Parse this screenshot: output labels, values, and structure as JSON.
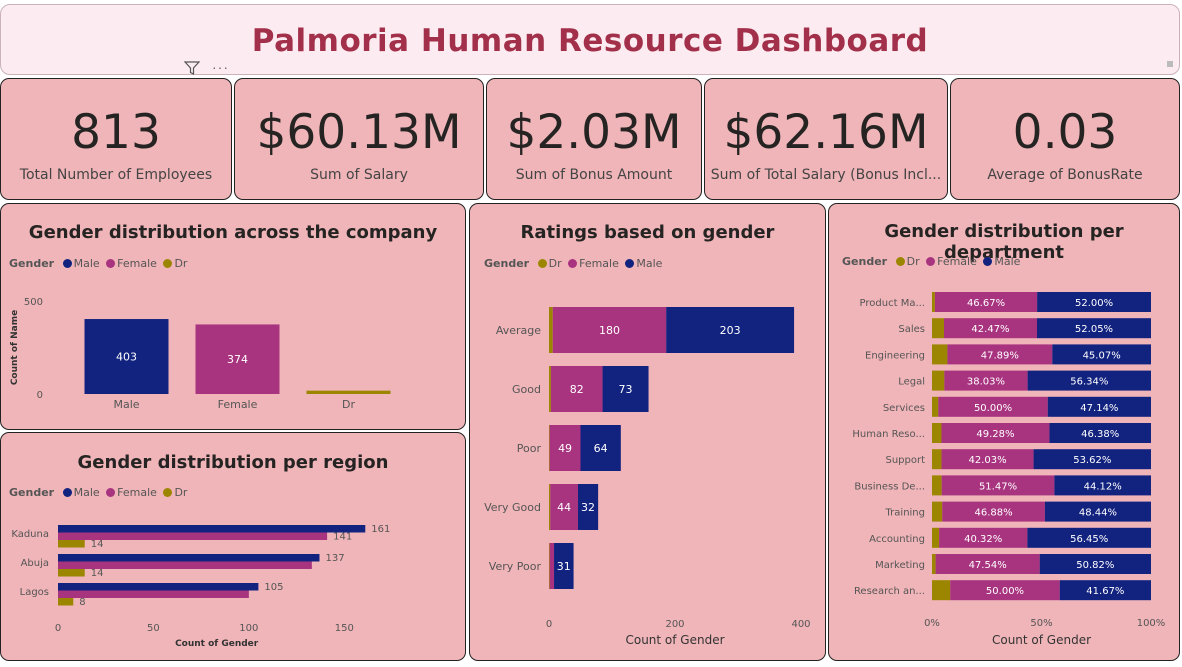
{
  "header": {
    "title": "Palmoria Human Resource Dashboard"
  },
  "kpis": [
    {
      "value": "813",
      "label": "Total Number of Employees"
    },
    {
      "value": "$60.13M",
      "label": "Sum of Salary"
    },
    {
      "value": "$2.03M",
      "label": "Sum of Bonus Amount"
    },
    {
      "value": "$62.16M",
      "label": "Sum of Total Salary (Bonus Incl..."
    },
    {
      "value": "0.03",
      "label": "Average of BonusRate"
    }
  ],
  "colors": {
    "male": "#12227f",
    "female": "#a8337f",
    "dr": "#9c8600"
  },
  "chart_data": [
    {
      "type": "bar",
      "title": "Gender distribution across the company",
      "legend_title": "Gender",
      "legend": [
        "Male",
        "Female",
        "Dr"
      ],
      "categories": [
        "Male",
        "Female",
        "Dr"
      ],
      "values": [
        403,
        374,
        18
      ],
      "data_labels": [
        "403",
        "374",
        ""
      ],
      "ylabel": "Count of Name",
      "y_ticks": [
        "500",
        "0"
      ],
      "ylim": [
        0,
        500
      ]
    },
    {
      "type": "bar",
      "orientation": "horizontal",
      "title": "Gender distribution per region",
      "legend_title": "Gender",
      "legend": [
        "Male",
        "Female",
        "Dr"
      ],
      "categories": [
        "Kaduna",
        "Abuja",
        "Lagos"
      ],
      "series": [
        {
          "name": "Male",
          "values": [
            161,
            137,
            105
          ],
          "labels": [
            "161",
            "137",
            "105"
          ]
        },
        {
          "name": "Female",
          "values": [
            141,
            133,
            100
          ],
          "labels": [
            "141",
            "",
            ""
          ]
        },
        {
          "name": "Dr",
          "values": [
            14,
            14,
            8
          ],
          "labels": [
            "14",
            "14",
            "8"
          ]
        }
      ],
      "xlabel": "Count of Gender",
      "x_ticks": [
        "0",
        "50",
        "100",
        "150"
      ],
      "xlim": [
        0,
        175
      ]
    },
    {
      "type": "bar",
      "orientation": "horizontal",
      "stacked": true,
      "title": "Ratings based on gender",
      "legend_title": "Gender",
      "legend": [
        "Dr",
        "Female",
        "Male"
      ],
      "categories": [
        "Average",
        "Good",
        "Poor",
        "Very Good",
        "Very Poor"
      ],
      "series": [
        {
          "name": "Dr",
          "values": [
            6,
            3,
            1,
            2,
            1
          ]
        },
        {
          "name": "Female",
          "values": [
            180,
            82,
            49,
            44,
            7
          ]
        },
        {
          "name": "Male",
          "values": [
            203,
            73,
            64,
            32,
            31
          ]
        }
      ],
      "xlabel": "Count of Gender",
      "x_ticks": [
        "0",
        "200",
        "400"
      ],
      "xlim": [
        0,
        420
      ]
    },
    {
      "type": "bar",
      "orientation": "horizontal",
      "stacked": true,
      "percent": true,
      "title": "Gender distribution per department",
      "legend_title": "Gender",
      "legend": [
        "Dr",
        "Female",
        "Male"
      ],
      "categories": [
        "Product Ma...",
        "Sales",
        "Engineering",
        "Legal",
        "Services",
        "Human Reso...",
        "Support",
        "Business De...",
        "Training",
        "Accounting",
        "Marketing",
        "Research an..."
      ],
      "series": [
        {
          "name": "Dr",
          "values": [
            1.33,
            5.48,
            7.04,
            5.63,
            2.86,
            4.34,
            4.35,
            4.41,
            4.68,
            3.23,
            1.64,
            8.33
          ]
        },
        {
          "name": "Female",
          "values": [
            46.67,
            42.47,
            47.89,
            38.03,
            50.0,
            49.28,
            42.03,
            51.47,
            46.88,
            40.32,
            47.54,
            50.0
          ]
        },
        {
          "name": "Male",
          "values": [
            52.0,
            52.05,
            45.07,
            56.34,
            47.14,
            46.38,
            53.62,
            44.12,
            48.44,
            56.45,
            50.82,
            41.67
          ]
        }
      ],
      "xlabel": "Count of Gender",
      "x_ticks": [
        "0%",
        "50%",
        "100%"
      ],
      "xlim": [
        0,
        100
      ]
    }
  ]
}
